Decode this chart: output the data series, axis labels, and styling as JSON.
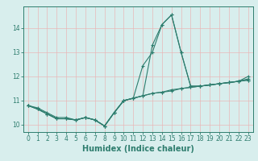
{
  "title": "",
  "xlabel": "Humidex (Indice chaleur)",
  "x_values": [
    0,
    1,
    2,
    3,
    4,
    5,
    6,
    7,
    8,
    9,
    10,
    11,
    12,
    13,
    14,
    15,
    16,
    17,
    18,
    19,
    20,
    21,
    22,
    23
  ],
  "lines": [
    [
      10.8,
      10.7,
      10.5,
      10.3,
      10.3,
      10.2,
      10.3,
      10.2,
      9.95,
      10.5,
      11.0,
      11.1,
      11.2,
      11.3,
      11.35,
      11.4,
      11.5,
      11.55,
      11.6,
      11.65,
      11.7,
      11.75,
      11.8,
      11.9
    ],
    [
      10.8,
      10.65,
      10.45,
      10.25,
      10.25,
      10.2,
      10.3,
      10.2,
      9.95,
      10.5,
      11.0,
      11.1,
      12.45,
      13.0,
      14.15,
      14.55,
      13.0,
      11.6,
      11.6,
      11.65,
      11.7,
      11.75,
      11.8,
      11.85
    ],
    [
      10.8,
      10.65,
      10.45,
      10.25,
      10.25,
      10.2,
      10.3,
      10.2,
      9.95,
      10.5,
      11.0,
      11.1,
      11.2,
      13.3,
      14.15,
      14.55,
      13.0,
      11.6,
      11.6,
      11.65,
      11.7,
      11.75,
      11.8,
      12.0
    ],
    [
      10.8,
      10.65,
      10.45,
      10.25,
      10.25,
      10.2,
      10.3,
      10.2,
      9.95,
      10.5,
      11.0,
      11.1,
      11.2,
      11.3,
      11.35,
      11.45,
      11.5,
      11.55,
      11.6,
      11.65,
      11.7,
      11.75,
      11.8,
      11.85
    ]
  ],
  "line_color": "#2e7d6e",
  "marker": "+",
  "markersize": 3.5,
  "linewidth": 0.8,
  "ylim": [
    9.7,
    14.9
  ],
  "xlim": [
    -0.5,
    23.5
  ],
  "yticks": [
    10,
    11,
    12,
    13,
    14
  ],
  "xticks": [
    0,
    1,
    2,
    3,
    4,
    5,
    6,
    7,
    8,
    9,
    10,
    11,
    12,
    13,
    14,
    15,
    16,
    17,
    18,
    19,
    20,
    21,
    22,
    23
  ],
  "bg_color": "#d8eeed",
  "grid_color": "#e8b8b8",
  "tick_fontsize": 5.5,
  "label_fontsize": 7,
  "tick_color": "#2e7d6e",
  "label_color": "#2e7d6e"
}
